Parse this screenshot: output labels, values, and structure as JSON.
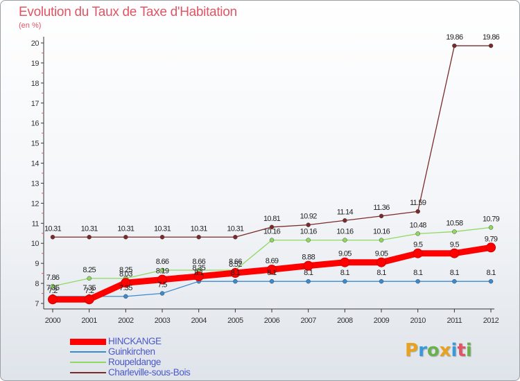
{
  "title": "Evolution du Taux de Taxe d'Habitation",
  "subtitle": "(en %)",
  "logo": {
    "text": "Proxiti",
    "colors": [
      "#e8a21b",
      "#3a9ad9",
      "#6ab04c",
      "#e8a21b",
      "#3a9ad9",
      "#e05565",
      "#6ab04c"
    ]
  },
  "chart_data": {
    "type": "line",
    "title": "Evolution du Taux de Taxe d'Habitation",
    "ylabel": "(en %)",
    "xlabel": "",
    "ylim": [
      7,
      20
    ],
    "yticks": [
      7,
      8,
      9,
      10,
      11,
      12,
      13,
      14,
      15,
      16,
      17,
      18,
      19,
      20
    ],
    "x": [
      "2000",
      "2001",
      "2002",
      "2003",
      "2004",
      "2005",
      "2006",
      "2007",
      "2008",
      "2009",
      "2010",
      "2011",
      "2012"
    ],
    "grid": false,
    "legend": "bottom-left",
    "series": [
      {
        "name": "HINCKANGE",
        "color": "#ff0000",
        "values": [
          7.2,
          7.2,
          8.03,
          8.19,
          8.35,
          8.52,
          8.69,
          8.88,
          9.05,
          9.05,
          9.5,
          9.5,
          9.79
        ],
        "labels": [
          "7.2",
          "7.2",
          "8.03",
          "8.19",
          "8.35",
          "8.52",
          "8.69",
          "8.88",
          "9.05",
          "9.05",
          "9.5",
          "9.5",
          "9.79"
        ]
      },
      {
        "name": "Guinkirchen",
        "color": "#3a8ad0",
        "values": [
          7.35,
          7.35,
          7.35,
          7.5,
          8.1,
          8.1,
          8.1,
          8.1,
          8.1,
          8.1,
          8.1,
          8.1,
          8.1
        ],
        "labels": [
          "7.35",
          "7.35",
          "7.35",
          "7.5",
          "8.1",
          "8.1",
          "8.1",
          "8.1",
          "8.1",
          "8.1",
          "8.1",
          "8.1",
          "8.1"
        ]
      },
      {
        "name": "Roupeldange",
        "color": "#8fd860",
        "values": [
          7.86,
          8.25,
          8.25,
          8.66,
          8.66,
          8.66,
          10.16,
          10.16,
          10.16,
          10.16,
          10.48,
          10.58,
          10.79
        ],
        "labels": [
          "7.86",
          "8.25",
          "8.25",
          "8.66",
          "8.66",
          "8.66",
          "10.16",
          "10.16",
          "10.16",
          "10.16",
          "10.48",
          "10.58",
          "10.79"
        ]
      },
      {
        "name": "Charleville-sous-Bois",
        "color": "#7a2a2a",
        "values": [
          10.31,
          10.31,
          10.31,
          10.31,
          10.31,
          10.31,
          10.81,
          10.92,
          11.14,
          11.36,
          11.59,
          19.86,
          19.86
        ],
        "labels": [
          "10.31",
          "10.31",
          "10.31",
          "10.31",
          "10.31",
          "10.31",
          "10.81",
          "10.92",
          "11.14",
          "11.36",
          "11.59",
          "19.86",
          "19.86"
        ]
      }
    ]
  }
}
